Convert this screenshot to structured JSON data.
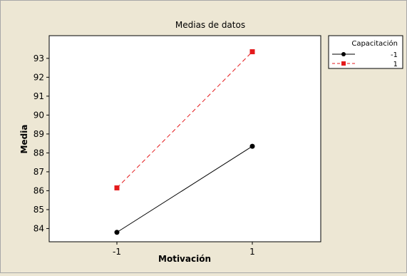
{
  "chart_data": {
    "type": "line",
    "title": "Medias de datos",
    "xlabel": "Motivación",
    "ylabel": "Media",
    "categories": [
      "-1",
      "1"
    ],
    "ylim": [
      83.3,
      94.2
    ],
    "yticks": [
      84,
      85,
      86,
      87,
      88,
      89,
      90,
      91,
      92,
      93
    ],
    "grid": false,
    "legend": {
      "title": "Capacitación",
      "placement": "right",
      "entries": [
        "-1",
        "1"
      ]
    },
    "series": [
      {
        "name": "-1",
        "values": [
          83.8,
          88.35
        ],
        "color": "#000000",
        "marker": "circle",
        "line_style": "solid"
      },
      {
        "name": "1",
        "values": [
          86.15,
          93.35
        ],
        "color": "#e41a1c",
        "marker": "square",
        "line_style": "dashed"
      }
    ]
  },
  "colors": {
    "background": "#ede7d4",
    "plot_background": "#ffffff"
  }
}
